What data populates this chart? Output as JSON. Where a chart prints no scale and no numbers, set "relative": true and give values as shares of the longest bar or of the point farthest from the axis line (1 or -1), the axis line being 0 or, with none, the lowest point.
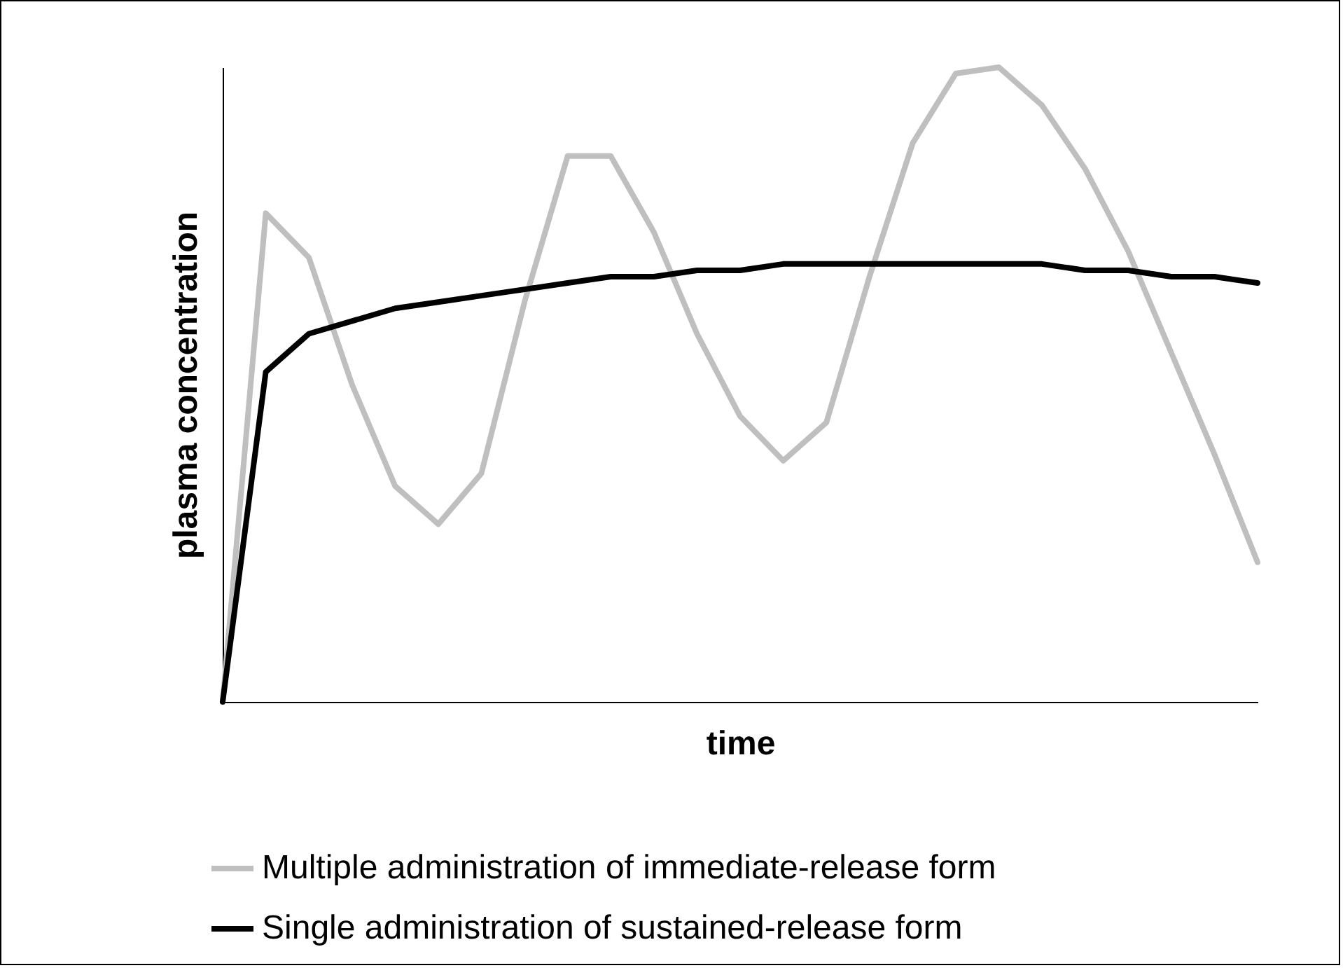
{
  "chart_data": {
    "type": "line",
    "relative": true,
    "xlabel": "time",
    "ylabel": "plasma concentration",
    "categories": [
      null,
      null,
      null,
      null,
      null,
      null,
      null,
      null,
      null,
      null,
      null,
      null,
      null,
      null,
      null,
      null,
      null,
      null,
      null,
      null,
      null,
      null,
      null,
      null,
      null
    ],
    "series": [
      {
        "name": "Multiple administration of immediate-release form",
        "color": "#bfbfbf",
        "values": [
          0,
          0.77,
          0.7,
          0.5,
          0.34,
          0.28,
          0.36,
          0.63,
          0.86,
          0.86,
          0.74,
          0.58,
          0.45,
          0.38,
          0.44,
          0.67,
          0.88,
          0.99,
          1,
          0.94,
          0.84,
          0.71,
          0.55,
          0.39,
          0.22
        ]
      },
      {
        "name": "Single administration of sustained-release form",
        "color": "#000000",
        "values": [
          0,
          0.52,
          0.58,
          0.6,
          0.62,
          0.63,
          0.64,
          0.65,
          0.66,
          0.67,
          0.67,
          0.68,
          0.68,
          0.69,
          0.69,
          0.69,
          0.69,
          0.69,
          0.69,
          0.69,
          0.68,
          0.68,
          0.67,
          0.67,
          0.66
        ]
      }
    ],
    "legend": "bottom",
    "tick_labels": false,
    "grid": false,
    "marker": "none",
    "line_style": "solid"
  }
}
